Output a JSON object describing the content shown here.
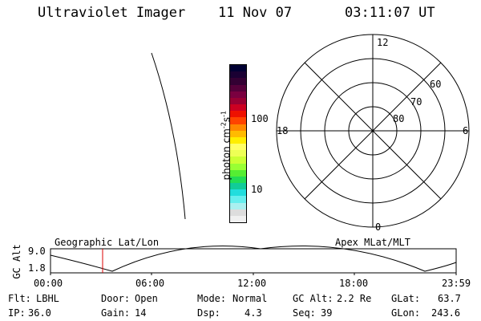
{
  "header": {
    "instrument": "Ultraviolet Imager",
    "date": "11 Nov 07",
    "time": "03:11:07 UT"
  },
  "colorbar": {
    "unit": "photon cm",
    "unit_sup1": "-2",
    "unit_s": "s",
    "unit_sup2": "-1",
    "tick_100": "100",
    "tick_10": "10",
    "colors": [
      "#000033",
      "#1a0033",
      "#330033",
      "#55003a",
      "#7a0040",
      "#990033",
      "#cc0022",
      "#ee1100",
      "#ff4400",
      "#ff8800",
      "#ffbb00",
      "#ffee00",
      "#ffff66",
      "#eeff55",
      "#ccff33",
      "#99ff33",
      "#55ee33",
      "#22dd55",
      "#11cc99",
      "#22dddd",
      "#66eeee",
      "#aaf0f0",
      "#dddddd",
      "#f0f0f0"
    ]
  },
  "polar": {
    "mlt_12": "12",
    "mlt_18": "18",
    "mlt_6": "6",
    "mlt_0": "0",
    "lat_60": "60",
    "lat_70": "70",
    "lat_80": "80"
  },
  "timeline": {
    "left_title": "Geographic Lat/Lon",
    "right_title": "Apex MLat/MLT",
    "ylabel": "GC Alt",
    "ymax": "9.0",
    "ymin": "1.8",
    "ticks": [
      "00:00",
      "06:00",
      "12:00",
      "18:00",
      "23:59"
    ],
    "marker_color": "#dd0000"
  },
  "status": {
    "flt_label": "Flt:",
    "flt_value": "LBHL",
    "ip_label": "IP:",
    "ip_value": "36.0",
    "door_label": "Door:",
    "door_value": "Open",
    "gain_label": "Gain:",
    "gain_value": "14",
    "mode_label": "Mode:",
    "mode_value": "Normal",
    "dsp_label": "Dsp:",
    "dsp_value": "4.3",
    "gcalt_label": "GC Alt:",
    "gcalt_value": "2.2 Re",
    "seq_label": "Seq:",
    "seq_value": "39",
    "glat_label": "GLat:",
    "glat_value": "63.7",
    "glon_label": "GLon:",
    "glon_value": "243.6"
  }
}
